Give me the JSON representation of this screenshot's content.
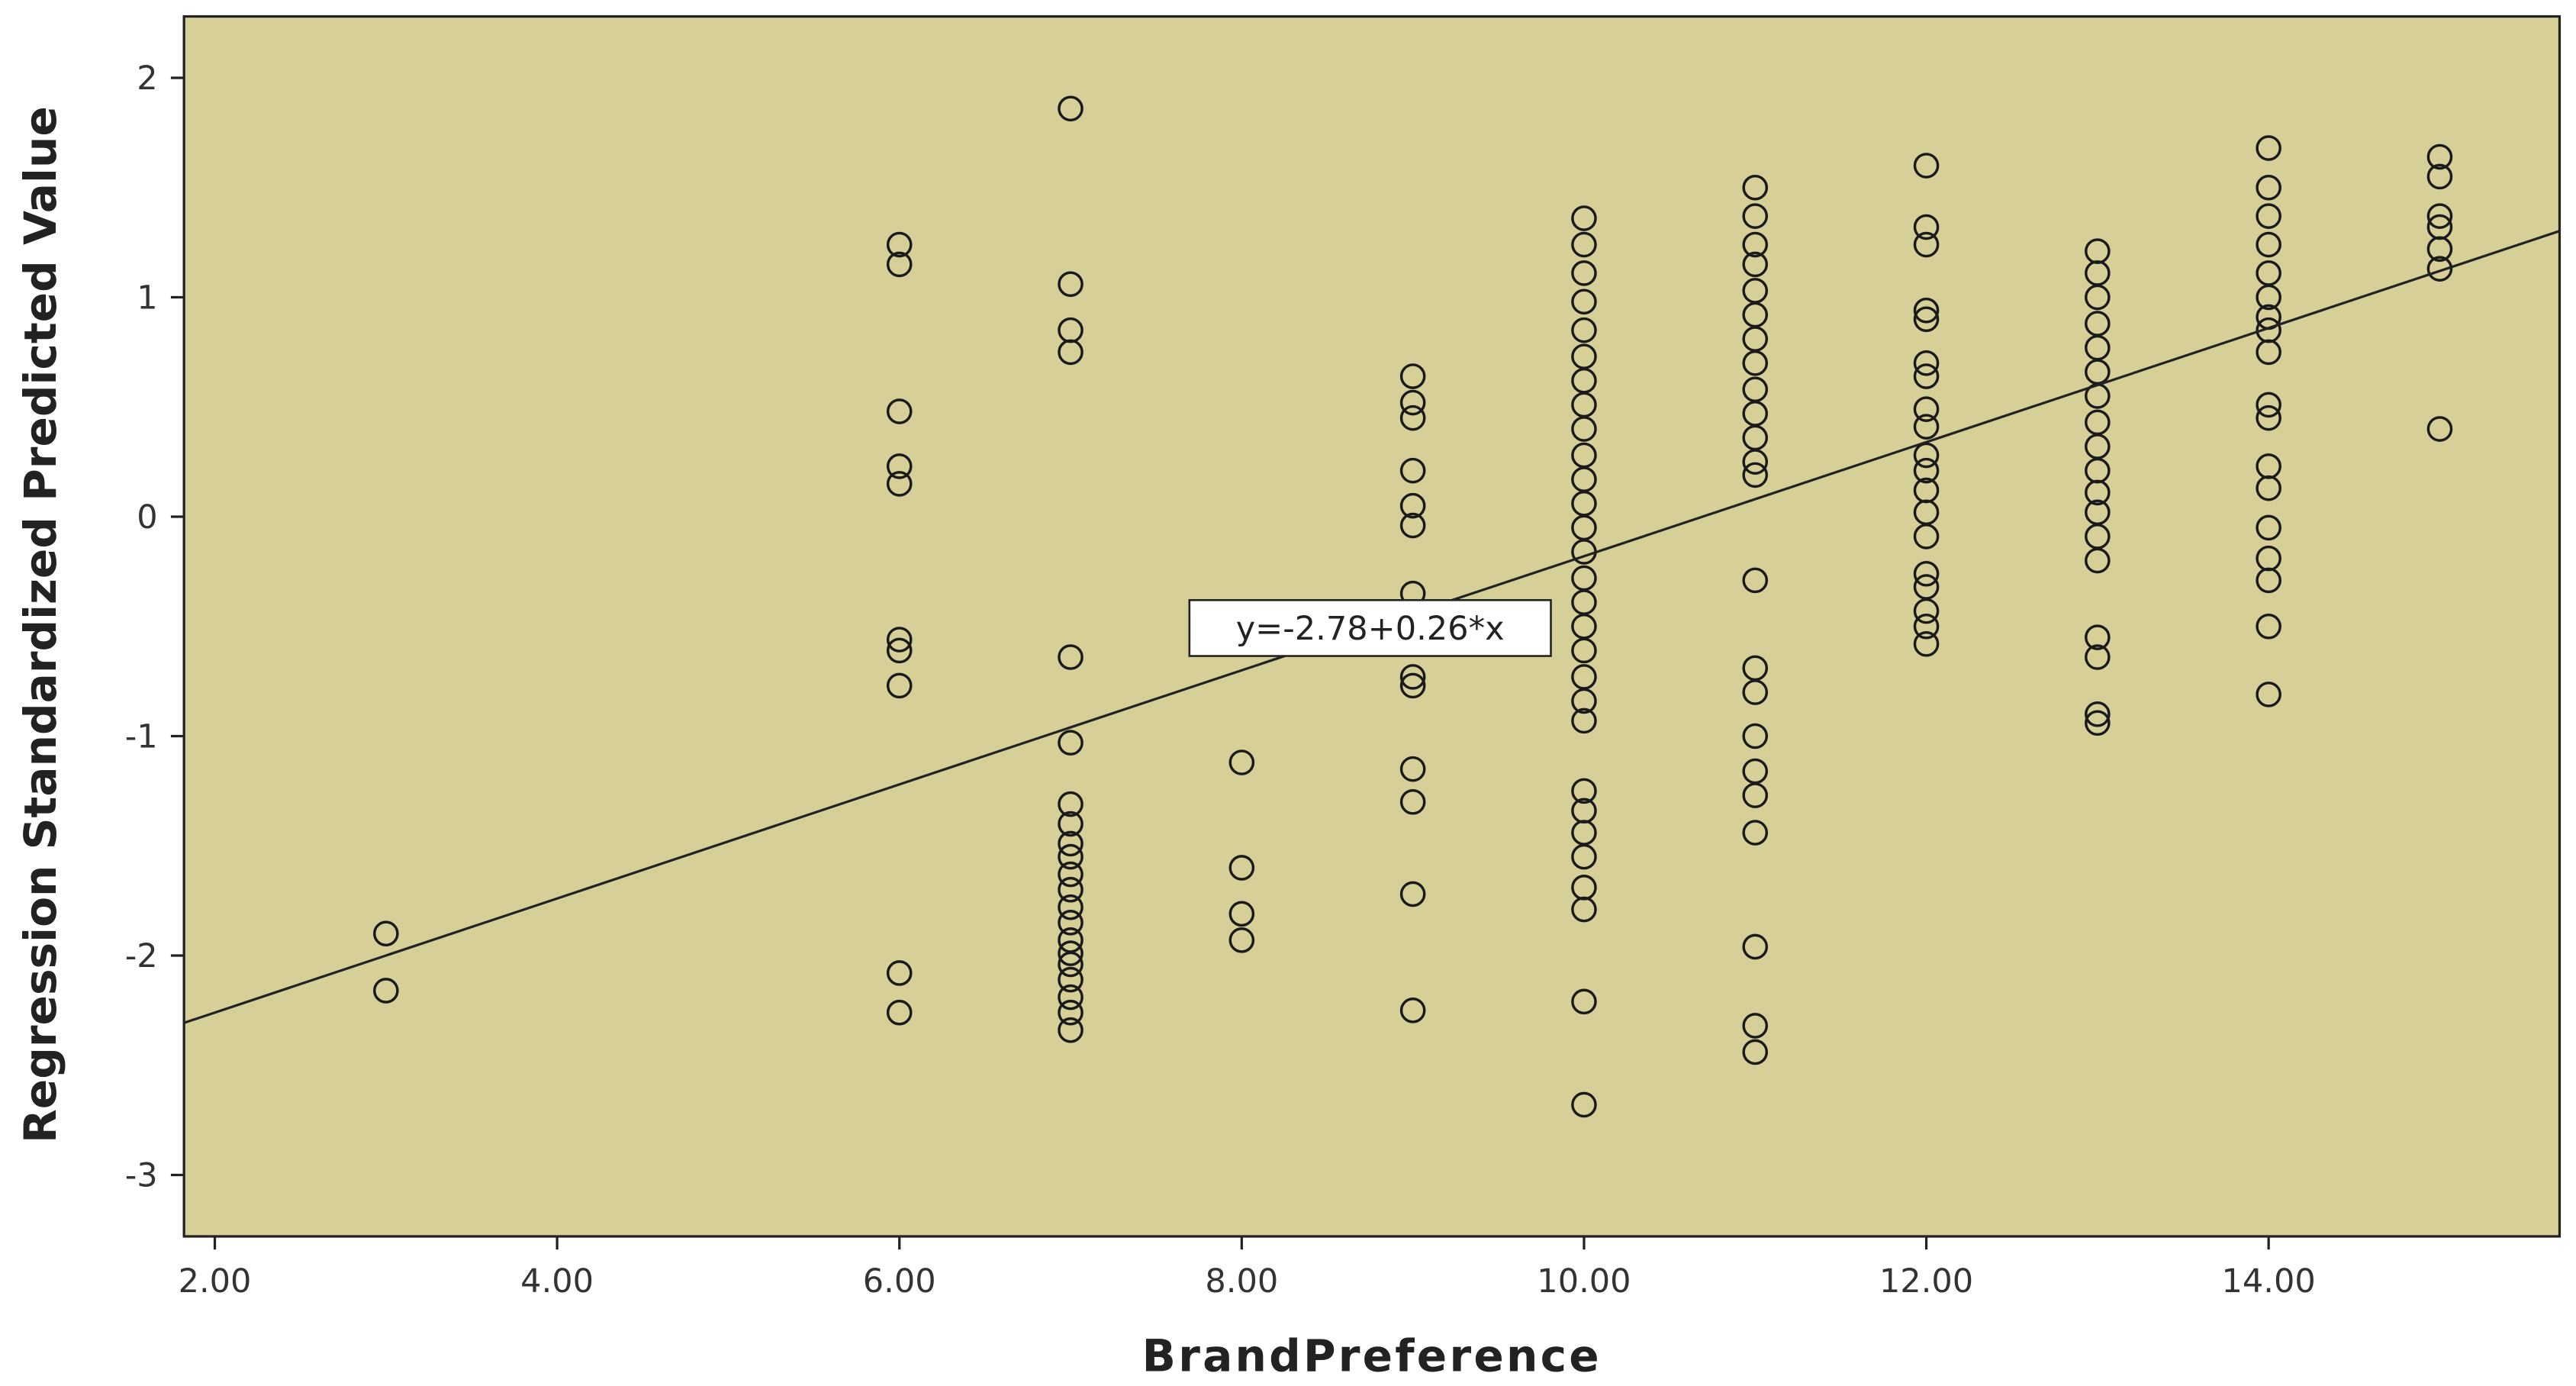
{
  "chart_data": {
    "type": "scatter",
    "x_label": "BrandPreference",
    "y_label": "Regression Standardized Predicted Value",
    "x": [
      3,
      3,
      6,
      6,
      6,
      6,
      6,
      6,
      6,
      6,
      6,
      6,
      7,
      7,
      7,
      7,
      7,
      7,
      7,
      7,
      7,
      7,
      7,
      7,
      7,
      7,
      7,
      7,
      7,
      7,
      7,
      7,
      7,
      8,
      8,
      8,
      8,
      9,
      9,
      9,
      9,
      9,
      9,
      9,
      9,
      9,
      9,
      9,
      9,
      9,
      10,
      10,
      10,
      10,
      10,
      10,
      10,
      10,
      10,
      10,
      10,
      10,
      10,
      10,
      10,
      10,
      10,
      10,
      10,
      10,
      10,
      10,
      10,
      10,
      10,
      10,
      10,
      10,
      10,
      11,
      11,
      11,
      11,
      11,
      11,
      11,
      11,
      11,
      11,
      11,
      11,
      11,
      11,
      11,
      11,
      11,
      11,
      11,
      11,
      11,
      11,
      11,
      12,
      12,
      12,
      12,
      12,
      12,
      12,
      12,
      12,
      12,
      12,
      12,
      12,
      12,
      12,
      12,
      12,
      12,
      12,
      13,
      13,
      13,
      13,
      13,
      13,
      13,
      13,
      13,
      13,
      13,
      13,
      13,
      13,
      13,
      13,
      13,
      13,
      14,
      14,
      14,
      14,
      14,
      14,
      14,
      14,
      14,
      14,
      14,
      14,
      14,
      14,
      14,
      14,
      14,
      14,
      15,
      15,
      15,
      15,
      15,
      15,
      15
    ],
    "values": [
      -1.9,
      -2.16,
      1.24,
      1.15,
      0.48,
      0.23,
      0.15,
      -0.56,
      -0.61,
      -0.77,
      -2.08,
      -2.26,
      1.86,
      1.06,
      0.85,
      0.75,
      -0.64,
      -1.03,
      -1.31,
      -1.4,
      -1.49,
      -1.55,
      -1.63,
      -1.7,
      -1.78,
      -1.85,
      -1.93,
      -1.99,
      -2.04,
      -2.11,
      -2.19,
      -2.26,
      -2.34,
      -1.12,
      -1.6,
      -1.81,
      -1.93,
      0.64,
      0.52,
      0.45,
      0.21,
      0.05,
      -0.04,
      -0.35,
      -0.73,
      -0.77,
      -1.15,
      -1.3,
      -1.72,
      -2.25,
      1.36,
      1.24,
      1.11,
      0.98,
      0.85,
      0.73,
      0.62,
      0.51,
      0.4,
      0.28,
      0.17,
      0.06,
      -0.05,
      -0.16,
      -0.28,
      -0.39,
      -0.5,
      -0.61,
      -0.73,
      -0.84,
      -0.93,
      -1.25,
      -1.34,
      -1.44,
      -1.55,
      -1.69,
      -1.79,
      -2.21,
      -2.68,
      1.5,
      1.37,
      1.24,
      1.15,
      1.03,
      0.92,
      0.81,
      0.7,
      0.58,
      0.47,
      0.36,
      0.25,
      0.19,
      -0.29,
      -0.69,
      -0.8,
      -1.0,
      -1.16,
      -1.27,
      -1.44,
      -1.96,
      -2.32,
      -2.44,
      1.6,
      1.32,
      1.24,
      0.94,
      0.9,
      0.7,
      0.64,
      0.49,
      0.41,
      0.28,
      0.21,
      0.12,
      0.02,
      -0.09,
      -0.26,
      -0.32,
      -0.43,
      -0.5,
      -0.58,
      1.21,
      1.11,
      1.0,
      0.88,
      0.77,
      0.66,
      0.55,
      0.43,
      0.32,
      0.21,
      0.11,
      0.02,
      -0.09,
      -0.2,
      -0.55,
      -0.64,
      -0.9,
      -0.94,
      1.68,
      1.5,
      1.37,
      1.24,
      1.11,
      1.0,
      0.91,
      0.85,
      0.75,
      0.51,
      0.45,
      0.23,
      0.13,
      -0.05,
      -0.19,
      -0.29,
      -0.5,
      -0.81,
      1.64,
      1.55,
      1.37,
      1.32,
      1.22,
      1.13,
      0.4
    ],
    "color": "#1a1a1a",
    "background": "#d6cf98",
    "fit": {
      "intercept": -2.78,
      "slope": 0.26,
      "label": "y=-2.78+0.26*x"
    },
    "xlim": [
      1.82,
      15.7
    ],
    "xticks": [
      {
        "value": 2,
        "label": "2.00"
      },
      {
        "value": 4,
        "label": "4.00"
      },
      {
        "value": 6,
        "label": "6.00"
      },
      {
        "value": 8,
        "label": "8.00"
      },
      {
        "value": 10,
        "label": "10.00"
      },
      {
        "value": 12,
        "label": "12.00"
      },
      {
        "value": 14,
        "label": "14.00"
      }
    ],
    "ylim": [
      -3.28,
      2.28
    ],
    "yticks": [
      -3,
      -2,
      -1,
      0,
      1,
      2
    ]
  }
}
